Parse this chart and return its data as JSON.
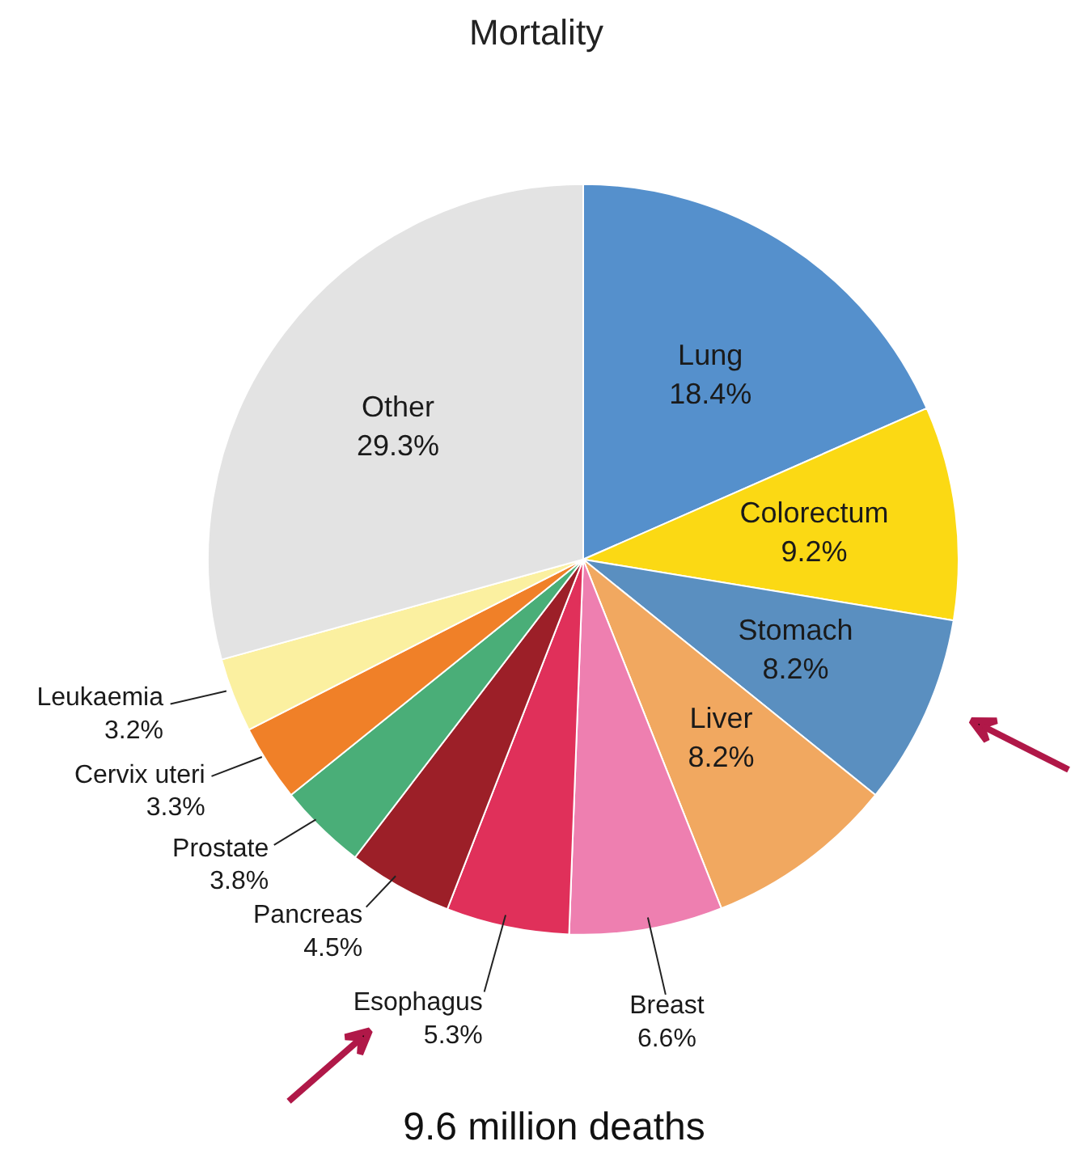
{
  "chart_data": {
    "type": "pie",
    "title": "Mortality",
    "categories": [
      "Lung",
      "Colorectum",
      "Stomach",
      "Liver",
      "Breast",
      "Esophagus",
      "Pancreas",
      "Prostate",
      "Cervix uteri",
      "Leukaemia",
      "Other"
    ],
    "values": [
      18.4,
      9.2,
      8.2,
      8.2,
      6.6,
      5.3,
      4.5,
      3.8,
      3.3,
      3.2,
      29.3
    ],
    "colors": [
      "#5590cc",
      "#fbd914",
      "#5a8fc0",
      "#f1a860",
      "#ee7fb0",
      "#e0305a",
      "#9c1f28",
      "#4aae78",
      "#f08028",
      "#fbf0a0",
      "#e3e3e3"
    ],
    "value_labels": [
      "18.4%",
      "9.2%",
      "8.2%",
      "8.2%",
      "6.6%",
      "5.3%",
      "4.5%",
      "3.8%",
      "3.3%",
      "3.2%",
      "29.3%"
    ],
    "annotations": [
      "9.6 million deaths"
    ]
  }
}
